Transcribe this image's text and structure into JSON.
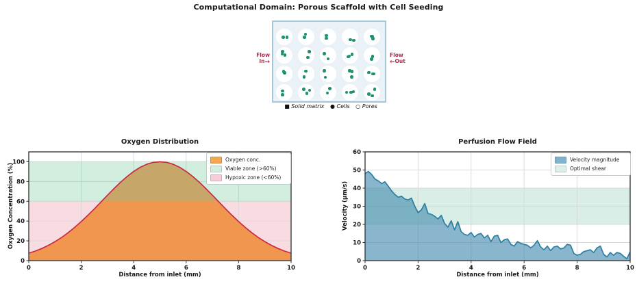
{
  "figure_title": "Computational Domain: Porous Scaffold with Cell Seeding",
  "diagram": {
    "flow_in": {
      "line1": "Flow",
      "line2": "In",
      "arrow": "→"
    },
    "flow_out": {
      "line1": "Flow",
      "line2": "Out",
      "arrow": "←"
    },
    "label_color": "#b02a4c",
    "matrix_color": "#eaf2f7",
    "border_color": "#a3c6d8",
    "pore_color": "#ffffff",
    "cell_color": "#1e9170",
    "grid": {
      "rows": 4,
      "cols": 5
    },
    "legend": [
      {
        "glyph": "■",
        "label": "Solid matrix"
      },
      {
        "glyph": "●",
        "label": "Cells"
      },
      {
        "glyph": "○",
        "label": "Pores"
      }
    ]
  },
  "chart_data": [
    {
      "type": "area",
      "title": "Oxygen Distribution",
      "xlabel": "Distance from inlet (mm)",
      "ylabel": "Oxygen Concentration (%)",
      "xlim": [
        0,
        10
      ],
      "ylim": [
        0,
        110
      ],
      "xticks": [
        0,
        2,
        4,
        6,
        8,
        10
      ],
      "yticks": [
        0,
        20,
        40,
        60,
        80,
        100
      ],
      "grid": true,
      "legend_position": "upper right",
      "bands": [
        {
          "label": "Hypoxic zone (<60%)",
          "from": 0,
          "to": 60,
          "color": "#f9dbe2",
          "opacity": 1,
          "mode": "base"
        },
        {
          "label": "Viable zone (>60%)",
          "from": 60,
          "to": 100,
          "color": "#73cc9e",
          "opacity": 0.33,
          "mode": "overlay"
        }
      ],
      "series": [
        {
          "name": "Oxygen conc.",
          "line_color": "#c82843",
          "fill_color": "#f0964f",
          "fill_opacity": 1,
          "x": [
            0,
            0.25,
            0.5,
            0.75,
            1,
            1.25,
            1.5,
            1.75,
            2,
            2.25,
            2.5,
            2.75,
            3,
            3.25,
            3.5,
            3.75,
            4,
            4.25,
            4.5,
            4.75,
            5,
            5.25,
            5.5,
            5.75,
            6,
            6.25,
            6.5,
            6.75,
            7,
            7.25,
            7.5,
            7.75,
            8,
            8.25,
            8.5,
            8.75,
            9,
            9.25,
            9.5,
            9.75,
            10
          ],
          "y": [
            7.6,
            9.7,
            12.3,
            15.5,
            19.2,
            23.4,
            28.2,
            33.6,
            39.5,
            45.8,
            52.4,
            59.3,
            66.2,
            72.9,
            79.3,
            85.1,
            90.2,
            94.4,
            97.5,
            99.4,
            100,
            99.4,
            97.5,
            94.4,
            90.2,
            85.1,
            79.3,
            72.9,
            66.2,
            59.3,
            52.4,
            45.8,
            39.5,
            33.6,
            28.2,
            23.4,
            19.2,
            15.5,
            12.3,
            9.7,
            7.6
          ]
        }
      ],
      "legend": [
        {
          "label": "Oxygen conc.",
          "color": "#f4a74e"
        },
        {
          "label": "Viable zone (>60%)",
          "color": "#d2eede"
        },
        {
          "label": "Hypoxic zone (<60%)",
          "color": "#f6cdd8"
        }
      ]
    },
    {
      "type": "area",
      "title": "Perfusion Flow Field",
      "xlabel": "Distance from inlet (mm)",
      "ylabel": "Velocity (μm/s)",
      "xlim": [
        0,
        10
      ],
      "ylim": [
        0,
        60
      ],
      "xticks": [
        0,
        2,
        4,
        6,
        8,
        10
      ],
      "yticks": [
        0,
        10,
        20,
        30,
        40,
        50,
        60
      ],
      "grid": true,
      "legend_position": "upper right",
      "bands": [
        {
          "label": "Optimal shear",
          "from": 20,
          "to": 40,
          "color": "#d9eee6",
          "opacity": 1,
          "mode": "base"
        }
      ],
      "series": [
        {
          "name": "Velocity magnitude",
          "line_color": "#2a7fa2",
          "fill_color": "#4a8fb0",
          "fill_opacity": 0.65,
          "x": [
            0,
            0.125,
            0.25,
            0.375,
            0.5,
            0.625,
            0.75,
            0.875,
            1,
            1.125,
            1.25,
            1.375,
            1.5,
            1.625,
            1.75,
            1.875,
            2,
            2.125,
            2.25,
            2.375,
            2.5,
            2.625,
            2.75,
            2.875,
            3,
            3.125,
            3.25,
            3.375,
            3.5,
            3.625,
            3.75,
            3.875,
            4,
            4.125,
            4.25,
            4.375,
            4.5,
            4.625,
            4.75,
            4.875,
            5,
            5.125,
            5.25,
            5.375,
            5.5,
            5.625,
            5.75,
            5.875,
            6,
            6.125,
            6.25,
            6.375,
            6.5,
            6.625,
            6.75,
            6.875,
            7,
            7.125,
            7.25,
            7.375,
            7.5,
            7.625,
            7.75,
            7.875,
            8,
            8.125,
            8.25,
            8.375,
            8.5,
            8.625,
            8.75,
            8.875,
            9,
            9.125,
            9.25,
            9.375,
            9.5,
            9.625,
            9.75,
            9.875,
            10
          ],
          "y": [
            48,
            49.2,
            47.5,
            45,
            44,
            42.5,
            43.5,
            41,
            38.5,
            36.5,
            35,
            35.5,
            34,
            33.5,
            34.5,
            30,
            26.5,
            28,
            31.5,
            26,
            25.5,
            24.5,
            23,
            25,
            20.5,
            18.5,
            22,
            17,
            21.5,
            16,
            14.5,
            14,
            15.5,
            13,
            14.5,
            15,
            12.5,
            14,
            10.5,
            13.5,
            14,
            10,
            11.5,
            12,
            9,
            8,
            10.5,
            9.5,
            9,
            8.5,
            7,
            8.5,
            11,
            7.5,
            6,
            8,
            5.5,
            7.5,
            8,
            6.5,
            7,
            9,
            8.5,
            4,
            3,
            3.5,
            5,
            5.5,
            6,
            4.5,
            7,
            8,
            3.5,
            2,
            4.5,
            3,
            4.5,
            4,
            2.5,
            1,
            5
          ]
        }
      ],
      "legend": [
        {
          "label": "Velocity magnitude",
          "color": "#7fb2cd"
        },
        {
          "label": "Optimal shear",
          "color": "#ddefe8"
        }
      ]
    }
  ]
}
